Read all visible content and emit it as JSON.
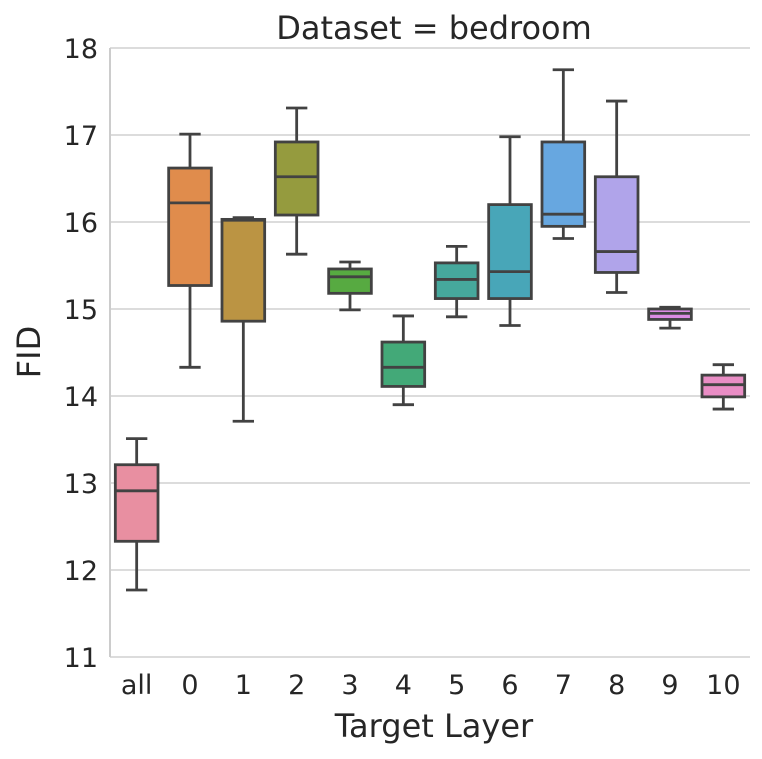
{
  "chart_data": {
    "type": "box",
    "title": "Dataset = bedroom",
    "xlabel": "Target Layer",
    "ylabel": "FID",
    "ylim": [
      11,
      18
    ],
    "yticks": [
      "11",
      "12",
      "13",
      "14",
      "15",
      "16",
      "17",
      "18"
    ],
    "grid": true,
    "categories": [
      "all",
      "0",
      "1",
      "2",
      "3",
      "4",
      "5",
      "6",
      "7",
      "8",
      "9",
      "10"
    ],
    "boxes": [
      {
        "label": "all",
        "whisker_low": 11.77,
        "q1": 12.33,
        "median": 12.91,
        "q3": 13.21,
        "whisker_high": 13.51,
        "color": "#e88fa1"
      },
      {
        "label": "0",
        "whisker_low": 14.33,
        "q1": 15.27,
        "median": 16.22,
        "q3": 16.62,
        "whisker_high": 17.01,
        "color": "#e08c4c"
      },
      {
        "label": "1",
        "whisker_low": 13.71,
        "q1": 14.86,
        "median": 16.02,
        "q3": 16.03,
        "whisker_high": 16.05,
        "color": "#bb9443"
      },
      {
        "label": "2",
        "whisker_low": 15.63,
        "q1": 16.08,
        "median": 16.52,
        "q3": 16.92,
        "whisker_high": 17.31,
        "color": "#959b3e"
      },
      {
        "label": "3",
        "whisker_low": 14.99,
        "q1": 15.18,
        "median": 15.37,
        "q3": 15.46,
        "whisker_high": 15.54,
        "color": "#57aa41"
      },
      {
        "label": "4",
        "whisker_low": 13.9,
        "q1": 14.11,
        "median": 14.33,
        "q3": 14.62,
        "whisker_high": 14.92,
        "color": "#43a978"
      },
      {
        "label": "5",
        "whisker_low": 14.91,
        "q1": 15.12,
        "median": 15.34,
        "q3": 15.53,
        "whisker_high": 15.72,
        "color": "#46a89c"
      },
      {
        "label": "6",
        "whisker_low": 14.81,
        "q1": 15.12,
        "median": 15.43,
        "q3": 16.2,
        "whisker_high": 16.98,
        "color": "#48a6b8"
      },
      {
        "label": "7",
        "whisker_low": 15.81,
        "q1": 15.95,
        "median": 16.09,
        "q3": 16.92,
        "whisker_high": 17.75,
        "color": "#67a7e0"
      },
      {
        "label": "8",
        "whisker_low": 15.19,
        "q1": 15.42,
        "median": 15.66,
        "q3": 16.52,
        "whisker_high": 17.39,
        "color": "#b0a4ea"
      },
      {
        "label": "9",
        "whisker_low": 14.78,
        "q1": 14.88,
        "median": 14.95,
        "q3": 15.0,
        "whisker_high": 15.02,
        "color": "#dd8be3"
      },
      {
        "label": "10",
        "whisker_low": 13.85,
        "q1": 13.99,
        "median": 14.13,
        "q3": 14.24,
        "whisker_high": 14.36,
        "color": "#e98dc5"
      }
    ]
  }
}
